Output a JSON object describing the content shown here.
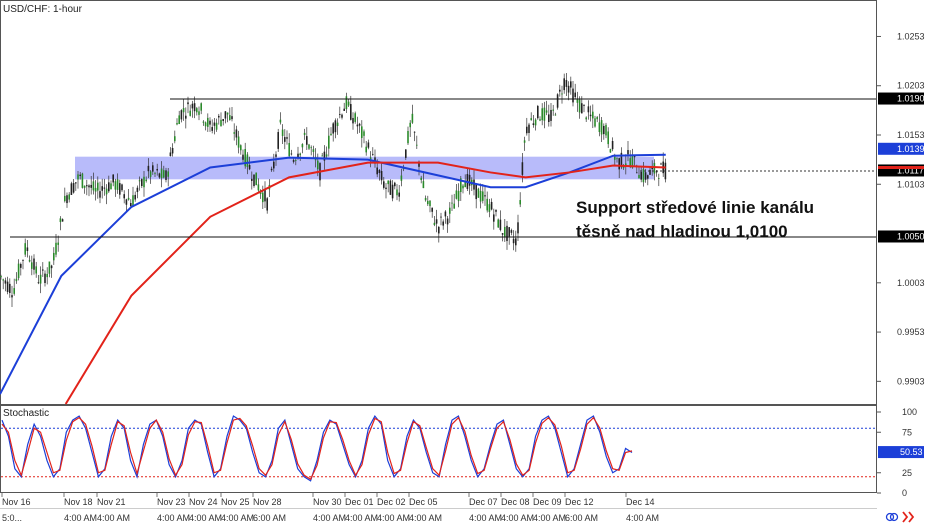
{
  "chart_data": [
    {
      "type": "candlestick",
      "title": "USD/CHF: 1-hour",
      "ylim": [
        0.988,
        1.029
      ],
      "y_ticks": [
        {
          "value": 1.0253,
          "label": "1.0253"
        },
        {
          "value": 1.0203,
          "label": "1.0203"
        },
        {
          "value": 1.0153,
          "label": "1.0153"
        },
        {
          "value": 1.0103,
          "label": "1.0103"
        },
        {
          "value": 1.0003,
          "label": "1.0003"
        },
        {
          "value": 0.9953,
          "label": "0.9953"
        },
        {
          "value": 0.9903,
          "label": "0.9903"
        }
      ],
      "price_tags": [
        {
          "value": 1.019,
          "label": "1.0190",
          "bg": "#000000",
          "fg": "#ffffff"
        },
        {
          "value": 1.0139,
          "label": "1.0139",
          "bg": "#1c3fd8",
          "fg": "#ffffff"
        },
        {
          "value": 1.0117,
          "label": "1.0117",
          "bg": "#000000",
          "fg": "#ffffff"
        },
        {
          "value": 1.005,
          "label": "1.0050",
          "bg": "#000000",
          "fg": "#ffffff"
        }
      ],
      "resistance_level": 1.019,
      "support_level": 1.005,
      "current_price": 1.0117,
      "channel_zone": {
        "low": 1.0108,
        "high": 1.0131
      },
      "annotation": {
        "line1": "Support středové linie kanálu",
        "line2": "těsně nad hladinou 1,0100"
      },
      "x_dates": [
        "Nov 16",
        "Nov 18",
        "Nov 21",
        "Nov 23",
        "Nov 24",
        "Nov 25",
        "Nov 28",
        "Nov 30",
        "Dec 01",
        "Dec 02",
        "Dec 05",
        "Dec 07",
        "Dec 08",
        "Dec 09",
        "Dec 12",
        "Dec 14"
      ],
      "x_times": [
        "5:0...",
        "4:00 AM",
        "4:00 AM",
        "4:00 AM",
        "4:00 AM",
        "4:00 AM",
        "6:00 AM",
        "4:00 AM",
        "4:00 AM",
        "4:00 AM",
        "4:00 AM",
        "4:00 AM",
        "4:00 AM",
        "4:00 AM",
        "6:00 AM",
        "4:00 AM"
      ],
      "price_path": [
        [
          0,
          1.001
        ],
        [
          0.015,
          0.9995
        ],
        [
          0.03,
          1.004
        ],
        [
          0.045,
          1.0005
        ],
        [
          0.06,
          1.002
        ],
        [
          0.075,
          1.009
        ],
        [
          0.09,
          1.011
        ],
        [
          0.11,
          1.0095
        ],
        [
          0.13,
          1.0105
        ],
        [
          0.15,
          1.0085
        ],
        [
          0.17,
          1.0115
        ],
        [
          0.19,
          1.011
        ],
        [
          0.205,
          1.0175
        ],
        [
          0.225,
          1.0185
        ],
        [
          0.24,
          1.016
        ],
        [
          0.26,
          1.0175
        ],
        [
          0.275,
          1.014
        ],
        [
          0.29,
          1.011
        ],
        [
          0.305,
          1.0085
        ],
        [
          0.32,
          1.016
        ],
        [
          0.335,
          1.013
        ],
        [
          0.35,
          1.015
        ],
        [
          0.365,
          1.0115
        ],
        [
          0.38,
          1.016
        ],
        [
          0.395,
          1.0185
        ],
        [
          0.41,
          1.016
        ],
        [
          0.425,
          1.013
        ],
        [
          0.44,
          1.01
        ],
        [
          0.455,
          1.0095
        ],
        [
          0.47,
          1.017
        ],
        [
          0.485,
          1.009
        ],
        [
          0.5,
          1.006
        ],
        [
          0.515,
          1.0075
        ],
        [
          0.53,
          1.011
        ],
        [
          0.545,
          1.0095
        ],
        [
          0.56,
          1.008
        ],
        [
          0.575,
          1.0055
        ],
        [
          0.59,
          1.0045
        ],
        [
          0.6,
          1.016
        ],
        [
          0.615,
          1.0175
        ],
        [
          0.63,
          1.017
        ],
        [
          0.645,
          1.021
        ],
        [
          0.66,
          1.0185
        ],
        [
          0.675,
          1.017
        ],
        [
          0.69,
          1.016
        ],
        [
          0.705,
          1.0125
        ],
        [
          0.72,
          1.013
        ],
        [
          0.735,
          1.011
        ],
        [
          0.75,
          1.0118
        ],
        [
          0.76,
          1.0117
        ]
      ],
      "series": [
        {
          "name": "",
          "color": "#1c3fd8",
          "points": [
            [
              0,
              0.989
            ],
            [
              0.07,
              1.001
            ],
            [
              0.15,
              1.008
            ],
            [
              0.24,
              1.012
            ],
            [
              0.33,
              1.013
            ],
            [
              0.42,
              1.0128
            ],
            [
              0.5,
              1.0112
            ],
            [
              0.56,
              1.01
            ],
            [
              0.6,
              1.01
            ],
            [
              0.65,
              1.0115
            ],
            [
              0.7,
              1.0132
            ],
            [
              0.76,
              1.0133
            ]
          ]
        },
        {
          "name": "",
          "color": "#e2231a",
          "points": [
            [
              0.075,
              0.988
            ],
            [
              0.15,
              0.999
            ],
            [
              0.24,
              1.007
            ],
            [
              0.33,
              1.011
            ],
            [
              0.42,
              1.0125
            ],
            [
              0.5,
              1.0125
            ],
            [
              0.56,
              1.0115
            ],
            [
              0.6,
              1.011
            ],
            [
              0.65,
              1.0115
            ],
            [
              0.7,
              1.0122
            ],
            [
              0.76,
              1.012
            ]
          ]
        }
      ]
    },
    {
      "type": "line",
      "title": "Stochastic",
      "ylim": [
        0,
        100
      ],
      "y_ticks": [
        {
          "value": 100,
          "label": "100"
        },
        {
          "value": 75,
          "label": "75"
        },
        {
          "value": 25,
          "label": "25"
        },
        {
          "value": 0,
          "label": "0"
        }
      ],
      "upper_level": 80,
      "lower_level": 20,
      "current_value": {
        "value": 50.53,
        "label": "50.53"
      },
      "series": [
        {
          "name": "",
          "color": "#1c3fd8",
          "values": [
            90,
            70,
            30,
            20,
            60,
            85,
            70,
            40,
            20,
            30,
            75,
            90,
            95,
            80,
            50,
            20,
            30,
            70,
            90,
            80,
            40,
            20,
            60,
            85,
            90,
            70,
            35,
            20,
            40,
            80,
            90,
            85,
            50,
            20,
            30,
            70,
            95,
            90,
            80,
            50,
            25,
            20,
            40,
            80,
            90,
            60,
            30,
            20,
            15,
            40,
            75,
            90,
            85,
            60,
            35,
            20,
            40,
            80,
            95,
            85,
            40,
            20,
            30,
            70,
            90,
            80,
            50,
            25,
            20,
            60,
            90,
            95,
            70,
            40,
            20,
            30,
            60,
            85,
            90,
            60,
            30,
            20,
            30,
            70,
            90,
            95,
            80,
            50,
            20,
            30,
            60,
            90,
            95,
            75,
            45,
            25,
            30,
            55,
            50
          ]
        },
        {
          "name": "",
          "color": "#e2231a",
          "values": [
            85,
            75,
            40,
            22,
            50,
            80,
            75,
            50,
            25,
            28,
            65,
            88,
            93,
            85,
            58,
            25,
            28,
            60,
            88,
            83,
            50,
            24,
            52,
            80,
            90,
            75,
            42,
            22,
            35,
            72,
            88,
            87,
            58,
            25,
            28,
            62,
            90,
            92,
            83,
            58,
            30,
            22,
            35,
            72,
            88,
            66,
            36,
            22,
            17,
            34,
            68,
            88,
            87,
            66,
            40,
            22,
            35,
            72,
            92,
            88,
            50,
            24,
            28,
            62,
            88,
            83,
            56,
            30,
            22,
            52,
            85,
            93,
            76,
            46,
            24,
            28,
            55,
            80,
            88,
            66,
            36,
            22,
            28,
            62,
            86,
            93,
            84,
            58,
            25,
            28,
            54,
            85,
            93,
            80,
            52,
            30,
            28,
            50,
            52
          ]
        }
      ]
    }
  ]
}
